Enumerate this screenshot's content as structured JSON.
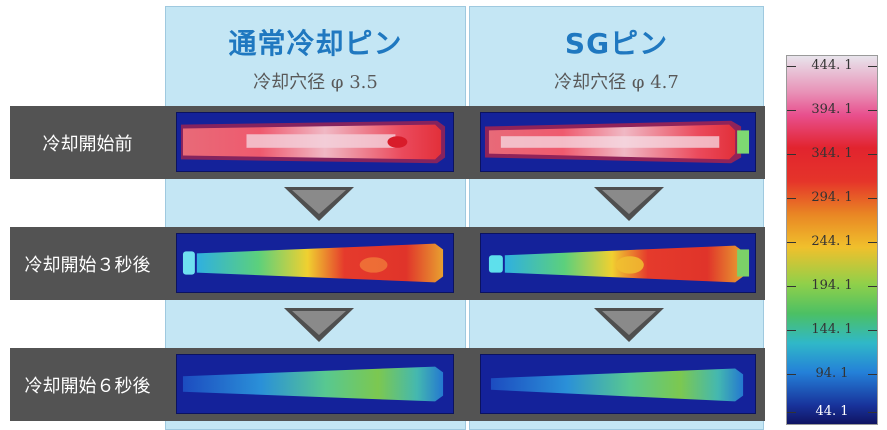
{
  "columns": [
    {
      "title": "通常冷却ピン",
      "subtitle": "冷却穴径 φ 3.5"
    },
    {
      "title": "SGピン",
      "subtitle": "冷却穴径 φ 4.7"
    }
  ],
  "rows": [
    {
      "label": "冷却開始前"
    },
    {
      "label": "冷却開始３秒後"
    },
    {
      "label": "冷却開始６秒後"
    }
  ],
  "scale": {
    "labels": [
      "444. 1",
      "394. 1",
      "344. 1",
      "294. 1",
      "244. 1",
      "194. 1",
      "144. 1",
      "94. 1",
      "44. 1"
    ]
  },
  "colors": {
    "column_bg": "#c4e6f4",
    "row_band": "#535353",
    "title_blue": "#1f78c0",
    "thermal_cold": "#14229a",
    "thermal_hot": "#e2242e"
  }
}
